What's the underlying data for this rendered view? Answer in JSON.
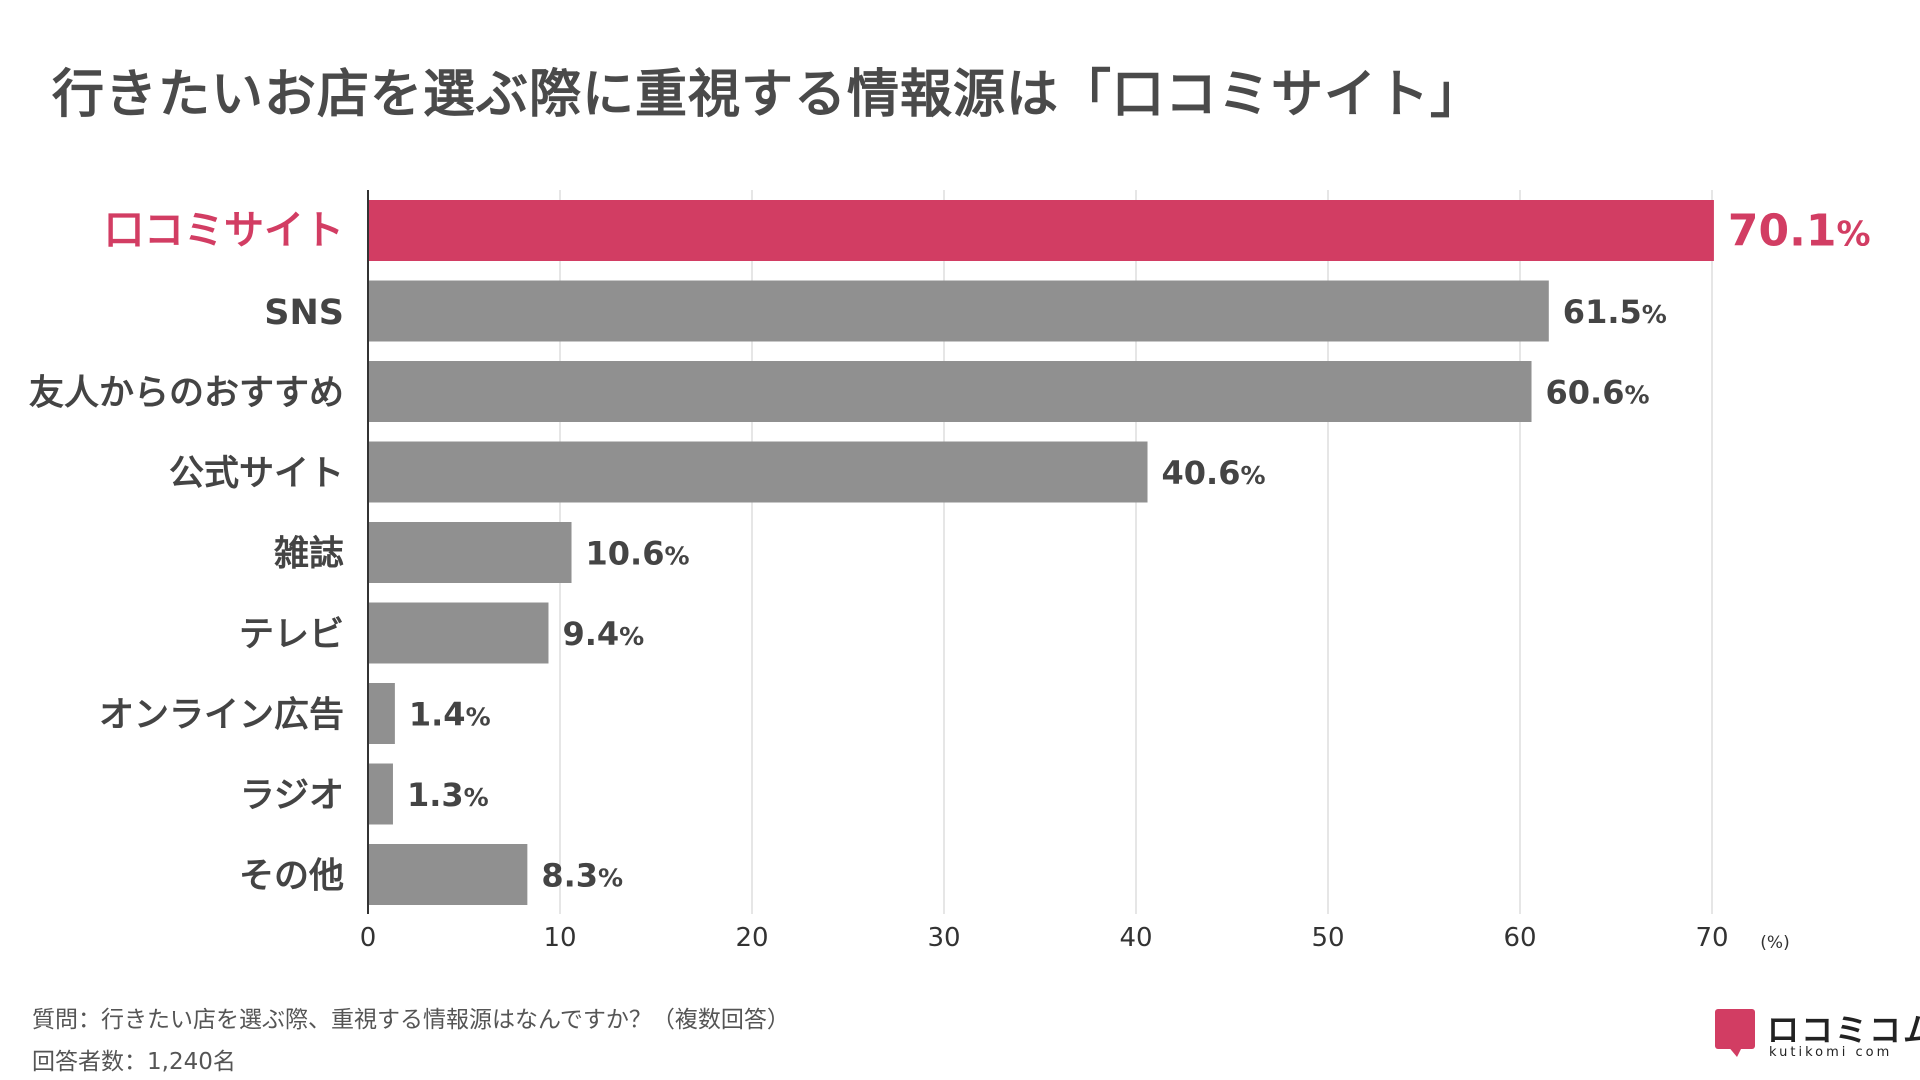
{
  "title": "行きたいお店を選ぶ際に重視する情報源は「口コミサイト」",
  "chart_data": {
    "type": "bar",
    "orientation": "horizontal",
    "categories": [
      "口コミサイト",
      "SNS",
      "友人からのおすすめ",
      "公式サイト",
      "雑誌",
      "テレビ",
      "オンライン広告",
      "ラジオ",
      "その他"
    ],
    "values": [
      70.1,
      61.5,
      60.6,
      40.6,
      10.6,
      9.4,
      1.4,
      1.3,
      8.3
    ],
    "value_labels": [
      "70.1",
      "61.5",
      "60.6",
      "40.6",
      "10.6",
      "9.4",
      "1.4",
      "1.3",
      "8.3"
    ],
    "value_suffix": "%",
    "highlight_index": 0,
    "xlim": [
      0,
      70
    ],
    "xticks": [
      "0",
      "10",
      "20",
      "30",
      "40",
      "50",
      "60",
      "70"
    ],
    "xunit_label": "(%)",
    "grid": true
  },
  "colors": {
    "highlight": "#d23d63",
    "bar": "#909090",
    "grid": "#cccccc",
    "axis": "#333333",
    "text": "#444444"
  },
  "footnotes": {
    "question": "質問：行きたい店を選ぶ際、重視する情報源はなんですか？（複数回答）",
    "respondents": "回答者数：1,240名"
  },
  "logo": {
    "name": "ロコミコム",
    "sub": "kutikomi com"
  }
}
